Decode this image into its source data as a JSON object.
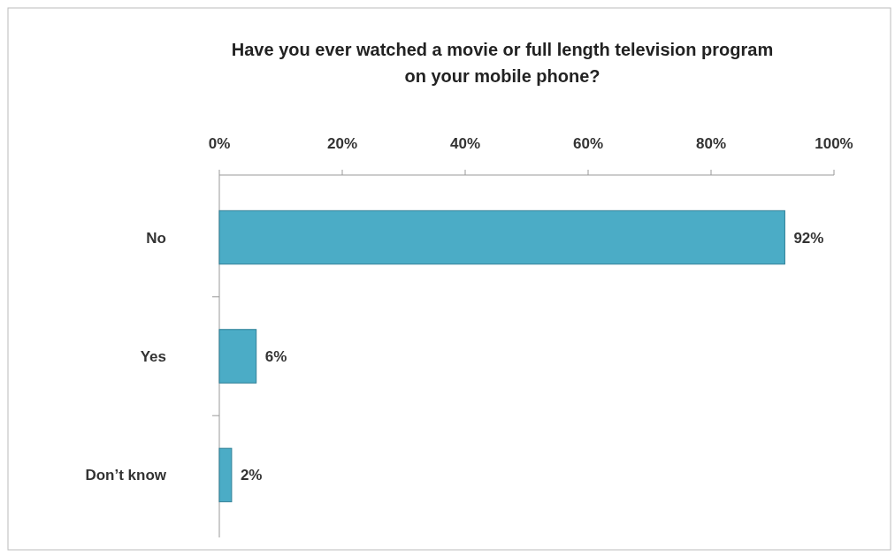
{
  "chart_data": {
    "type": "bar",
    "orientation": "horizontal",
    "title": "Have you ever watched a movie or full length television program on your mobile phone?",
    "categories": [
      "No",
      "Yes",
      "Don’t know"
    ],
    "values": [
      92,
      6,
      2
    ],
    "color": "#4bacc6",
    "value_labels": [
      "92%",
      "6%",
      "2%"
    ],
    "xlim": [
      0,
      100
    ],
    "xticks": [
      {
        "value": 0,
        "label": "0%"
      },
      {
        "value": 20,
        "label": "20%"
      },
      {
        "value": 40,
        "label": "40%"
      },
      {
        "value": 60,
        "label": "60%"
      },
      {
        "value": 80,
        "label": "80%"
      },
      {
        "value": 100,
        "label": "100%"
      }
    ],
    "grid": false
  }
}
